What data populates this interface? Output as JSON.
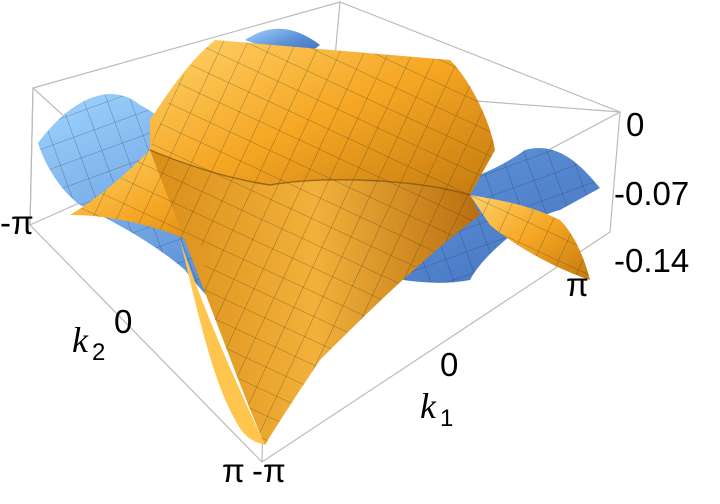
{
  "chart_data": {
    "type": "surface3d",
    "title": "",
    "surfaces": [
      {
        "color": "#f5a623",
        "role": "orange surface"
      },
      {
        "color": "#5b8fd6",
        "role": "blue surface"
      }
    ],
    "x_axis": {
      "label_symbol": "k",
      "label_subscript": "1",
      "ticks": [
        "-π",
        "0",
        "π"
      ],
      "range": [
        -3.1416,
        3.1416
      ]
    },
    "y_axis": {
      "label_symbol": "k",
      "label_subscript": "2",
      "ticks": [
        "-π",
        "0",
        "π"
      ],
      "range": [
        -3.1416,
        3.1416
      ]
    },
    "z_axis": {
      "ticks": [
        "0",
        "-0.07",
        "-0.14"
      ],
      "range": [
        -0.14,
        0
      ]
    },
    "box": true
  }
}
